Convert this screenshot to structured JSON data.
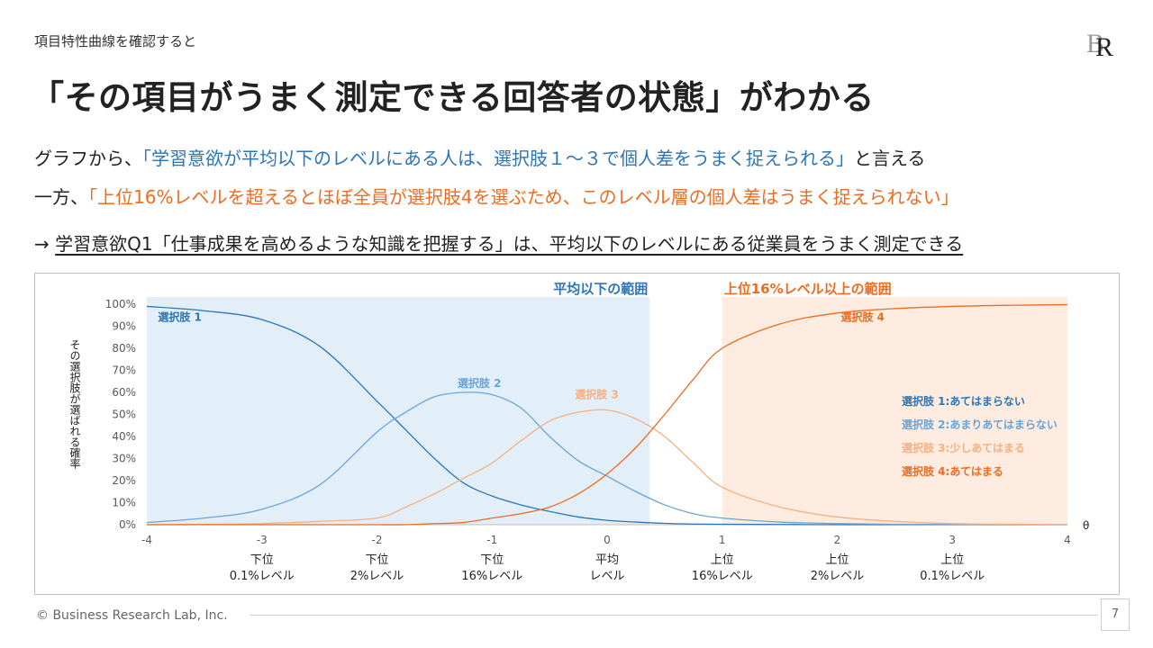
{
  "header": {
    "kicker": "項目特性曲線を確認すると",
    "title": "「その項目がうまく測定できる回答者の状態」がわかる"
  },
  "body": {
    "line1": {
      "prefix": "グラフから、",
      "highlight": "「学習意欲が平均以下のレベルにある人は、選択肢１～３で個人差をうまく捉えられる」",
      "suffix": "と言える"
    },
    "line2": {
      "prefix": "一方、",
      "highlight": "「上位16%レベルを超えるとほぼ全員が選択肢4を選ぶため、このレベル層の個人差はうまく捉えられない」"
    },
    "line3": {
      "arrow": "→ ",
      "text": "学習意欲Q1「仕事成果を高めるような知識を把握する」は、平均以下のレベルにある従業員をうまく測定できる"
    }
  },
  "footer": {
    "copyright": "© Business Research Lab, Inc.",
    "page": "7"
  },
  "colors": {
    "blue": "#2e75b6",
    "orange": "#ed6c1f",
    "c1": "#2e75b6",
    "c2": "#6aa5d8",
    "c3": "#f4b183",
    "c4": "#ed6c1f",
    "band_blue": "#ddebf7",
    "band_orange": "#fde9d9"
  },
  "chart_data": {
    "type": "line",
    "ylabel": "その選択肢が選ばれる確率",
    "xlabel": "θ",
    "xlim": [
      -4,
      4
    ],
    "ylim": [
      0,
      100
    ],
    "yticks": [
      "0%",
      "10%",
      "20%",
      "30%",
      "40%",
      "50%",
      "60%",
      "70%",
      "80%",
      "90%",
      "100%"
    ],
    "xticks": [
      {
        "value": -4,
        "label": "-4",
        "sub": [
          "",
          ""
        ]
      },
      {
        "value": -3,
        "label": "-3",
        "sub": [
          "下位",
          "0.1%レベル"
        ]
      },
      {
        "value": -2,
        "label": "-2",
        "sub": [
          "下位",
          "2%レベル"
        ]
      },
      {
        "value": -1,
        "label": "-1",
        "sub": [
          "下位",
          "16%レベル"
        ]
      },
      {
        "value": 0,
        "label": "0",
        "sub": [
          "平均",
          "レベル"
        ]
      },
      {
        "value": 1,
        "label": "1",
        "sub": [
          "上位",
          "16%レベル"
        ]
      },
      {
        "value": 2,
        "label": "2",
        "sub": [
          "上位",
          "2%レベル"
        ]
      },
      {
        "value": 3,
        "label": "3",
        "sub": [
          "上位",
          "0.1%レベル"
        ]
      },
      {
        "value": 4,
        "label": "4",
        "sub": [
          "",
          ""
        ]
      }
    ],
    "bands": [
      {
        "label": "平均以下の範囲",
        "from": -4,
        "to": 0.37,
        "color": "blue"
      },
      {
        "label": "上位16%レベル以上の範囲",
        "from": 1,
        "to": 4,
        "color": "orange"
      }
    ],
    "x": [
      -4,
      -3.5,
      -3,
      -2.5,
      -2,
      -1.75,
      -1.5,
      -1.25,
      -1,
      -0.75,
      -0.5,
      -0.25,
      0,
      0.25,
      0.5,
      0.75,
      1,
      1.5,
      2,
      2.5,
      3,
      3.5,
      4
    ],
    "series": [
      {
        "name": "選択肢 1",
        "color": "c1",
        "label_x": -3.95,
        "label_y": 94,
        "values": [
          99,
          97,
          93,
          81,
          56,
          43,
          30,
          19,
          13,
          9,
          6,
          3.5,
          2,
          1.2,
          0.6,
          0.3,
          0.2,
          0.1,
          0,
          0,
          0,
          0,
          0
        ]
      },
      {
        "name": "選択肢 2",
        "color": "c2",
        "label_x": -1.3,
        "label_y": 64,
        "values": [
          1,
          3,
          7,
          18,
          42,
          51,
          58,
          60,
          59,
          53,
          40,
          29,
          22,
          15,
          9,
          5,
          3,
          1.2,
          0.5,
          0.2,
          0.1,
          0,
          0
        ]
      },
      {
        "name": "選択肢 3",
        "color": "c3",
        "label_x": -0.28,
        "label_y": 59,
        "values": [
          0,
          0.2,
          0.5,
          1.5,
          3,
          8,
          14,
          21,
          28,
          38,
          47,
          51,
          52,
          48,
          40,
          28,
          17,
          8,
          3.5,
          1.5,
          0.5,
          0.2,
          0
        ]
      },
      {
        "name": "選択肢 4",
        "color": "c4",
        "label_x": 2.03,
        "label_y": 94,
        "values": [
          0,
          0,
          0,
          0,
          0,
          0,
          0.5,
          1,
          3,
          5,
          8,
          14,
          23,
          35,
          50,
          66,
          80,
          91,
          96,
          98,
          99,
          99.5,
          99.8
        ]
      }
    ],
    "legend": {
      "items": [
        {
          "text": "選択肢 1:あてはまらない",
          "color": "c1"
        },
        {
          "text": "選択肢 2:あまりあてはまらない",
          "color": "c2"
        },
        {
          "text": "選択肢 3:少しあてはまる",
          "color": "c3"
        },
        {
          "text": "選択肢 4:あてはまる",
          "color": "c4"
        }
      ]
    }
  }
}
